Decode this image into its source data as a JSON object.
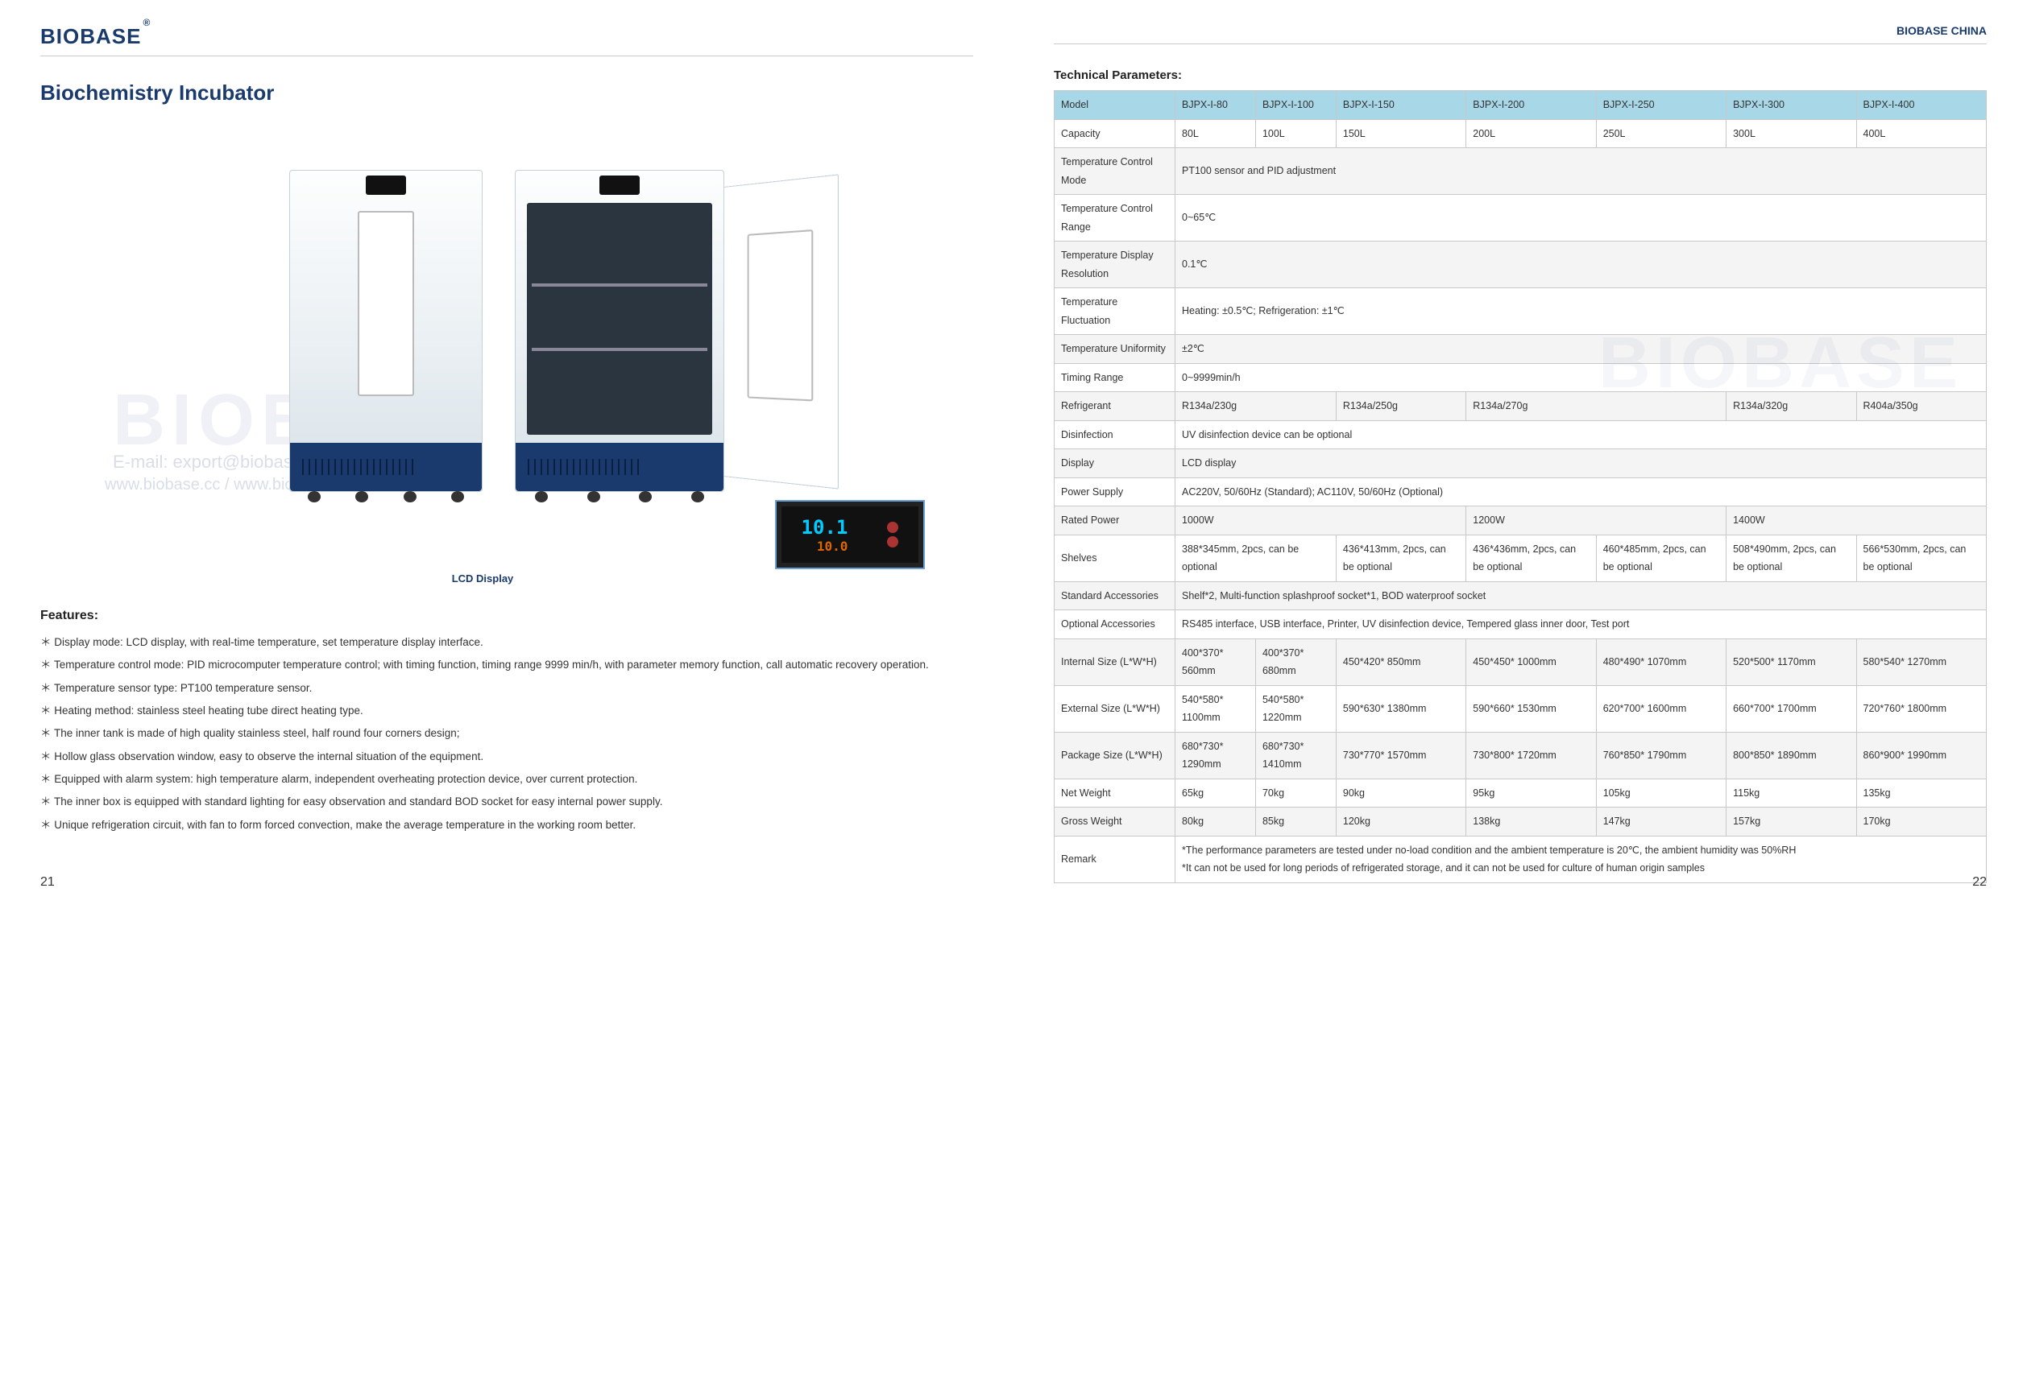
{
  "brand": "BIOBASE",
  "brand_sup": "®",
  "hdr_right": "BIOBASE CHINA",
  "title": "Biochemistry Incubator",
  "lcd_caption": "LCD Display",
  "lcd_temp1": "10.1",
  "lcd_temp2": "10.0",
  "features_h": "Features:",
  "features": [
    "Display mode: LCD display, with real-time temperature, set temperature display interface.",
    "Temperature control mode: PID microcomputer temperature control; with timing function, timing range 9999 min/h, with parameter memory function, call automatic recovery operation.",
    "Temperature sensor type: PT100 temperature sensor.",
    "Heating method: stainless steel heating tube direct heating type.",
    "The inner tank is made of high quality stainless steel, half round four corners design;",
    "Hollow glass observation window, easy to observe the internal situation of the equipment.",
    "Equipped with alarm system: high temperature alarm, independent overheating protection device, over current protection.",
    "The inner box is equipped with standard lighting for easy observation and standard BOD socket for easy internal power supply.",
    "Unique refrigeration circuit, with fan to form forced convection, make the average temperature in the working room better."
  ],
  "page_left": "21",
  "page_right": "22",
  "tech_h": "Technical Parameters:",
  "models": [
    "BJPX-I-80",
    "BJPX-I-100",
    "BJPX-I-150",
    "BJPX-I-200",
    "BJPX-I-250",
    "BJPX-I-300",
    "BJPX-I-400"
  ],
  "row_model": "Model",
  "row_capacity": {
    "label": "Capacity",
    "vals": [
      "80L",
      "100L",
      "150L",
      "200L",
      "250L",
      "300L",
      "400L"
    ]
  },
  "row_tcm": {
    "label": "Temperature Control Mode",
    "val": "PT100 sensor and PID adjustment"
  },
  "row_tcr": {
    "label": "Temperature Control Range",
    "val": "0~65℃"
  },
  "row_tdr": {
    "label": "Temperature Display Resolution",
    "val": "0.1℃"
  },
  "row_tf": {
    "label": "Temperature Fluctuation",
    "val": "Heating: ±0.5℃; Refrigeration: ±1℃"
  },
  "row_tu": {
    "label": "Temperature Uniformity",
    "val": "±2℃"
  },
  "row_timing": {
    "label": "Timing Range",
    "val": "0~9999min/h"
  },
  "row_refrig_l": "Refrigerant",
  "row_refrig": [
    "R134a/230g",
    "R134a/250g",
    "R134a/270g",
    "R134a/320g",
    "R404a/350g"
  ],
  "row_disinf": {
    "label": "Disinfection",
    "val": "UV disinfection device can be optional"
  },
  "row_disp": {
    "label": "Display",
    "val": "LCD display"
  },
  "row_ps": {
    "label": "Power Supply",
    "val": "AC220V, 50/60Hz (Standard); AC110V, 50/60Hz (Optional)"
  },
  "row_rp_l": "Rated Power",
  "row_rp": [
    "1000W",
    "1200W",
    "1400W"
  ],
  "row_shelves_l": "Shelves",
  "row_shelves": [
    "388*345mm, 2pcs, can be optional",
    "436*413mm, 2pcs, can be optional",
    "436*436mm, 2pcs, can be optional",
    "460*485mm, 2pcs, can be optional",
    "508*490mm, 2pcs, can be optional",
    "566*530mm, 2pcs, can be optional"
  ],
  "row_stdacc": {
    "label": "Standard Accessories",
    "val": "Shelf*2, Multi-function splashproof socket*1, BOD waterproof socket"
  },
  "row_optacc": {
    "label": "Optional Accessories",
    "val": "RS485 interface, USB interface, Printer, UV disinfection device, Tempered glass inner door, Test port"
  },
  "row_int": {
    "label": "Internal Size (L*W*H)",
    "vals": [
      "400*370* 560mm",
      "400*370* 680mm",
      "450*420* 850mm",
      "450*450* 1000mm",
      "480*490* 1070mm",
      "520*500* 1170mm",
      "580*540* 1270mm"
    ]
  },
  "row_ext": {
    "label": "External Size (L*W*H)",
    "vals": [
      "540*580* 1100mm",
      "540*580* 1220mm",
      "590*630* 1380mm",
      "590*660* 1530mm",
      "620*700* 1600mm",
      "660*700* 1700mm",
      "720*760* 1800mm"
    ]
  },
  "row_pkg": {
    "label": "Package Size (L*W*H)",
    "vals": [
      "680*730* 1290mm",
      "680*730* 1410mm",
      "730*770* 1570mm",
      "730*800* 1720mm",
      "760*850* 1790mm",
      "800*850* 1890mm",
      "860*900* 1990mm"
    ]
  },
  "row_nw": {
    "label": "Net Weight",
    "vals": [
      "65kg",
      "70kg",
      "90kg",
      "95kg",
      "105kg",
      "115kg",
      "135kg"
    ]
  },
  "row_gw": {
    "label": "Gross Weight",
    "vals": [
      "80kg",
      "85kg",
      "120kg",
      "138kg",
      "147kg",
      "157kg",
      "170kg"
    ]
  },
  "row_remark": {
    "label": "Remark",
    "val": "*The performance parameters are tested under no-load condition and the ambient temperature is 20℃, the ambient humidity was 50%RH\n*It can not be used for long periods of refrigerated storage, and it can not be used for culture of human origin samples"
  },
  "watermark": "BIOBASE",
  "watermark_email": "E-mail: export@biobase.com",
  "watermark_web": "www.biobase.cc / www.biobase.com"
}
